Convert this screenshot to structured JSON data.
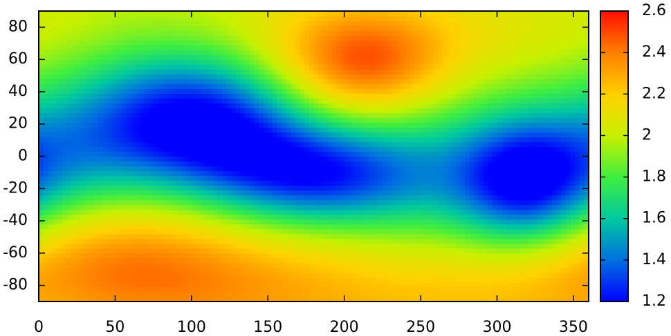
{
  "chart_data": {
    "type": "heatmap",
    "title": "",
    "xlabel": "",
    "ylabel": "",
    "xlim": [
      0,
      360
    ],
    "ylim": [
      -90,
      90
    ],
    "x_ticks": [
      0,
      50,
      100,
      150,
      200,
      250,
      300,
      350
    ],
    "x_tick_labels": [
      "0",
      "50",
      "100",
      "150",
      "200",
      "250",
      "300",
      "350"
    ],
    "y_ticks": [
      80,
      60,
      40,
      20,
      0,
      -20,
      -40,
      -60,
      -80
    ],
    "y_tick_labels": [
      "80",
      "60",
      "40",
      "20",
      "0",
      "-20",
      "-40",
      "-60",
      "-80"
    ],
    "grid": false,
    "colorbar": {
      "range": [
        1.2,
        2.6
      ],
      "ticks": [
        2.6,
        2.4,
        2.2,
        2,
        1.8,
        1.6,
        1.4,
        1.2
      ],
      "tick_labels": [
        "2.6",
        "2.4",
        "2.2",
        "2",
        "1.8",
        "1.6",
        "1.4",
        "1.2"
      ],
      "colormap": [
        {
          "value": 1.2,
          "color": "#0000ff"
        },
        {
          "value": 1.4,
          "color": "#0070e0"
        },
        {
          "value": 1.6,
          "color": "#00c8a0"
        },
        {
          "value": 1.8,
          "color": "#40ee40"
        },
        {
          "value": 2.0,
          "color": "#c8f000"
        },
        {
          "value": 2.2,
          "color": "#ffd000"
        },
        {
          "value": 2.4,
          "color": "#ff8000"
        },
        {
          "value": 2.6,
          "color": "#ff1000"
        }
      ]
    },
    "field": {
      "base": 2.0,
      "features": [
        {
          "kind": "high",
          "x": 212,
          "y": 56,
          "amplitude": 0.48,
          "x_spread": 42,
          "y_spread": 24
        },
        {
          "kind": "high",
          "x": 55,
          "y": -62,
          "amplitude": 0.32,
          "x_spread": 75,
          "y_spread": 28
        },
        {
          "kind": "high",
          "x": 200,
          "y": -90,
          "amplitude": 0.25,
          "x_spread": 170,
          "y_spread": 28
        },
        {
          "kind": "high",
          "x": 240,
          "y": 80,
          "amplitude": 0.1,
          "x_spread": 100,
          "y_spread": 20
        },
        {
          "kind": "low",
          "x": 92,
          "y": 22,
          "amplitude": -0.75,
          "x_spread": 48,
          "y_spread": 30
        },
        {
          "kind": "low",
          "x": 10,
          "y": 0,
          "amplitude": -0.35,
          "x_spread": 40,
          "y_spread": 30
        },
        {
          "kind": "low",
          "x": 190,
          "y": -12,
          "amplitude": -0.62,
          "x_spread": 45,
          "y_spread": 22
        },
        {
          "kind": "low",
          "x": 318,
          "y": -16,
          "amplitude": -0.75,
          "x_spread": 32,
          "y_spread": 28
        },
        {
          "kind": "low",
          "x": 140,
          "y": 5,
          "amplitude": -0.3,
          "x_spread": 40,
          "y_spread": 30
        },
        {
          "kind": "low",
          "x": 260,
          "y": -5,
          "amplitude": -0.25,
          "x_spread": 40,
          "y_spread": 35
        }
      ]
    }
  }
}
